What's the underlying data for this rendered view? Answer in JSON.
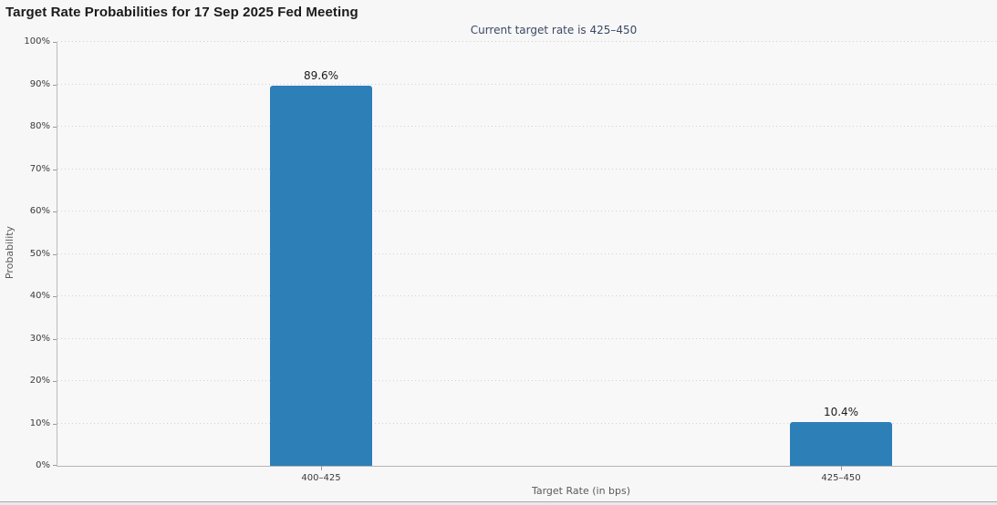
{
  "chart_data": {
    "type": "bar",
    "title": "Target Rate Probabilities for 17 Sep 2025 Fed Meeting",
    "subtitle": "Current target rate is 425–450",
    "categories": [
      "400–425",
      "425–450"
    ],
    "values": [
      89.6,
      10.4
    ],
    "value_labels": [
      "89.6%",
      "10.4%"
    ],
    "xlabel": "Target Rate (in bps)",
    "ylabel": "Probability",
    "ylim": [
      0,
      100
    ],
    "y_tick_labels": [
      "0%",
      "10%",
      "20%",
      "30%",
      "40%",
      "50%",
      "60%",
      "70%",
      "80%",
      "90%",
      "100%"
    ],
    "grid": "horizontal-dotted",
    "legend": "none",
    "bar_color": "#2d7fb8"
  },
  "colors": {
    "background": "#f7f7f8",
    "bar": "#2d7fb8",
    "subtitle_text": "#3c4963",
    "axis_line": "#b5b5b5",
    "gridline": "#d2d2d6"
  }
}
